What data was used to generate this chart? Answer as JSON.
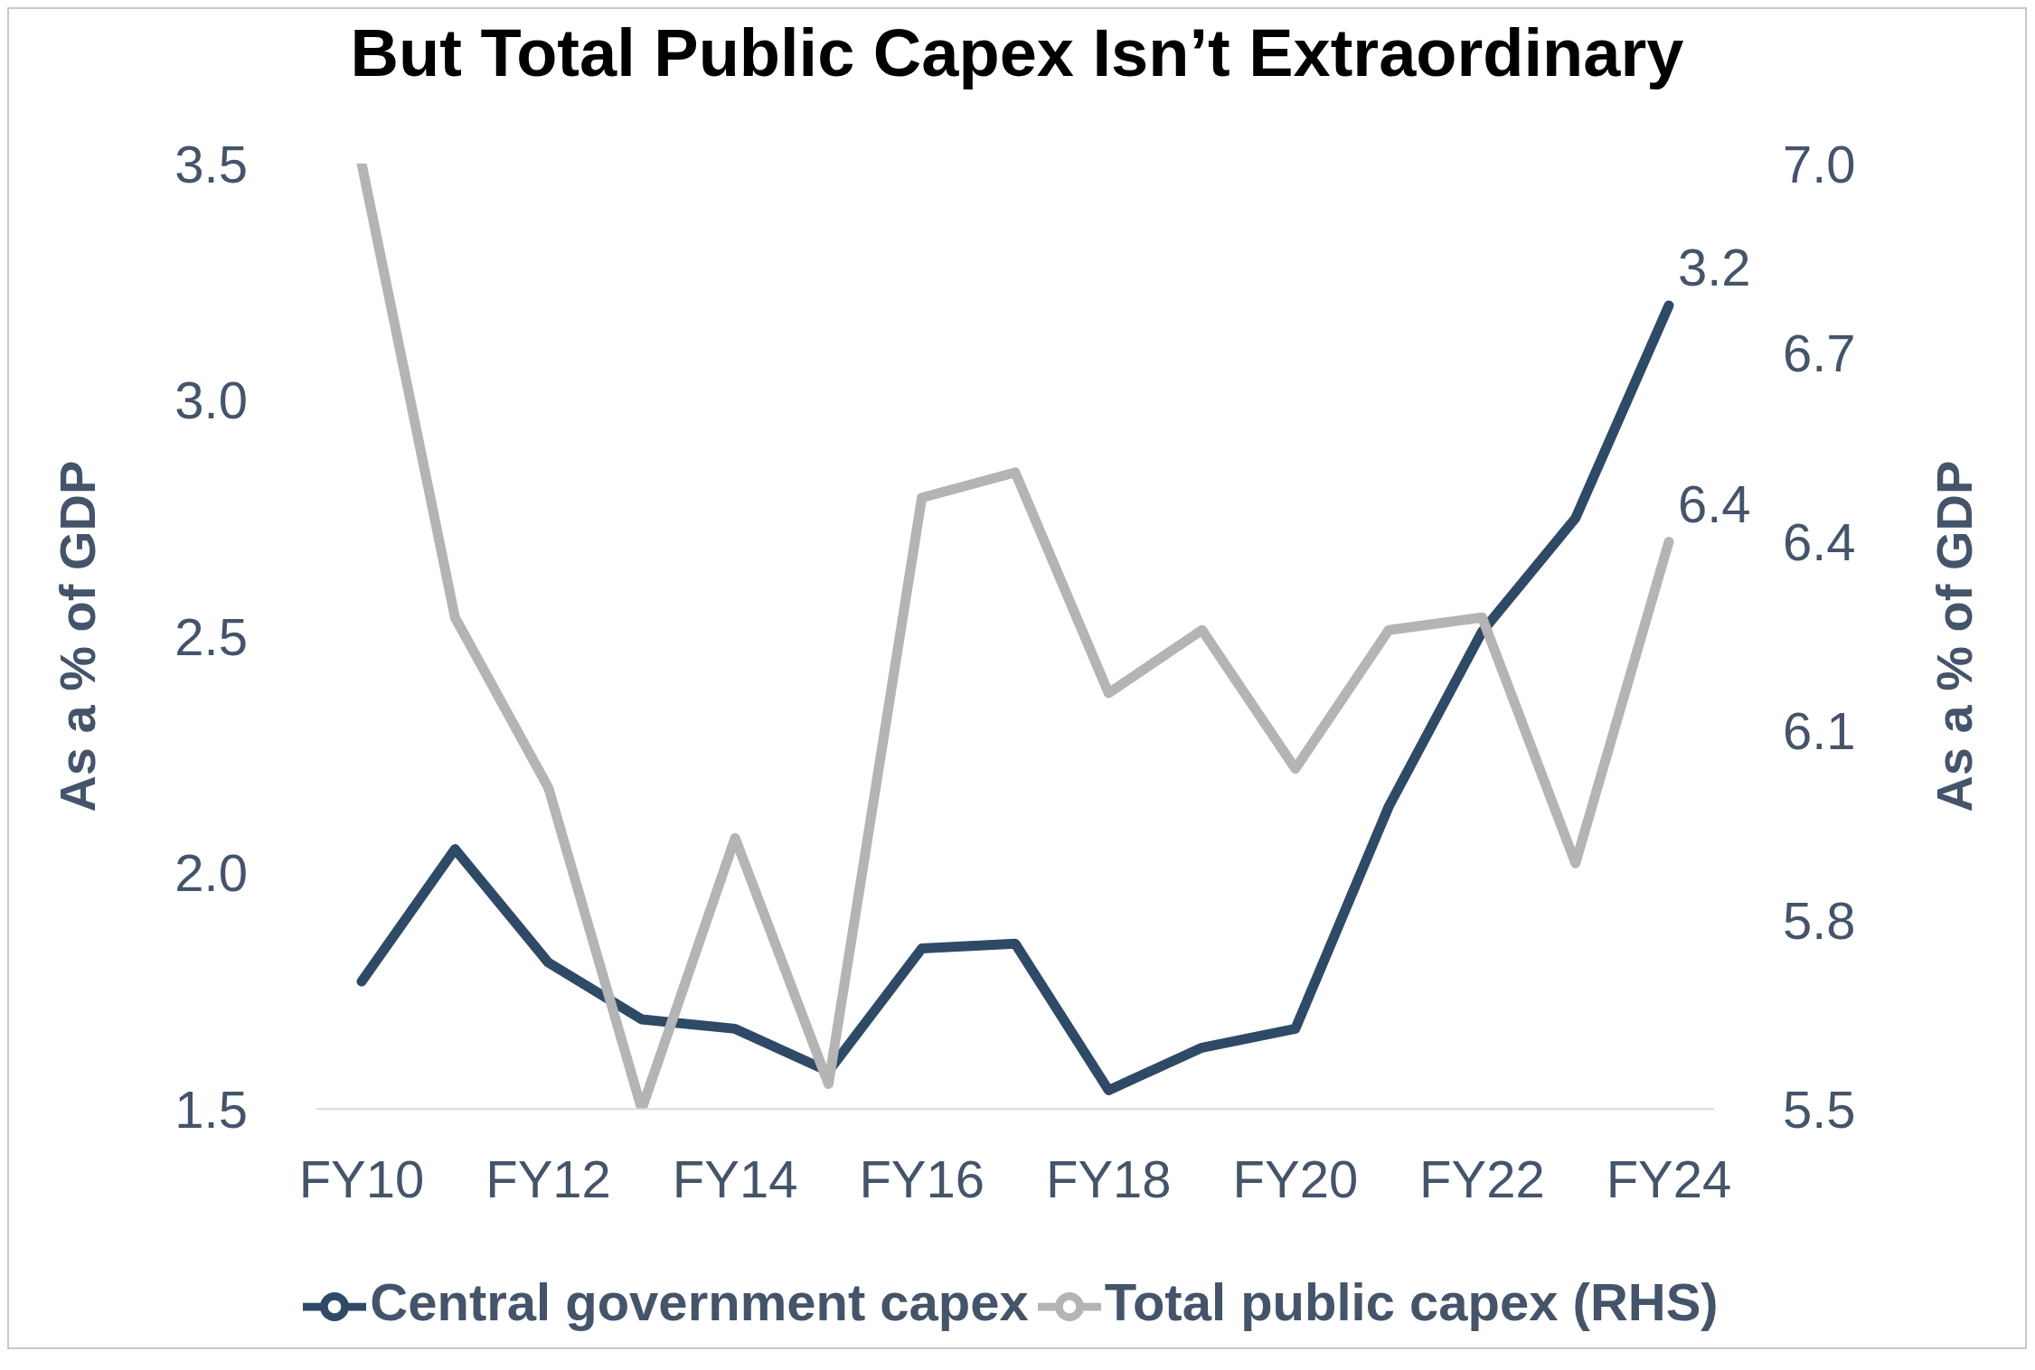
{
  "chart_data": {
    "type": "line",
    "title": "But Total Public Capex Isn’t Extraordinary",
    "ylabel": "As a % of GDP",
    "y2label": "As a % of GDP",
    "categories": [
      "FY10",
      null,
      "FY12",
      null,
      "FY14",
      null,
      "FY16",
      null,
      "FY18",
      null,
      "FY20",
      null,
      "FY22",
      null,
      "FY24"
    ],
    "series": [
      {
        "name": "Central government capex",
        "color": "#2f4a66",
        "values": [
          1.77,
          2.05,
          1.81,
          1.69,
          1.67,
          1.58,
          1.84,
          1.85,
          1.54,
          1.63,
          1.67,
          2.14,
          2.51,
          2.75,
          3.2
        ],
        "value_labels": [
          null,
          null,
          null,
          null,
          null,
          null,
          null,
          null,
          null,
          null,
          null,
          null,
          null,
          null,
          "3.2"
        ]
      },
      {
        "name": "Total public capex (RHS)",
        "color": "#b4b4b4",
        "axis": "y2",
        "values": [
          7.0,
          6.28,
          6.01,
          5.5,
          5.93,
          5.54,
          6.47,
          6.51,
          6.16,
          6.26,
          6.04,
          6.26,
          6.28,
          5.89,
          6.4
        ],
        "value_labels": [
          null,
          null,
          null,
          null,
          null,
          null,
          null,
          null,
          null,
          null,
          null,
          null,
          null,
          null,
          "6.4"
        ]
      }
    ],
    "ylim": [
      1.5,
      3.5
    ],
    "yticks": [
      1.5,
      {
        "value": 2,
        "label": "2.0"
      },
      2.5,
      {
        "value": 3,
        "label": "3.0"
      },
      3.5
    ],
    "y2lim": [
      5.5,
      7.0
    ],
    "y2ticks": [
      5.5,
      5.8,
      6.1,
      6.4,
      6.7,
      {
        "value": 7,
        "label": "7.0"
      }
    ],
    "legend": "bottom",
    "marker": "none",
    "line_style": "solid",
    "grid": false
  }
}
